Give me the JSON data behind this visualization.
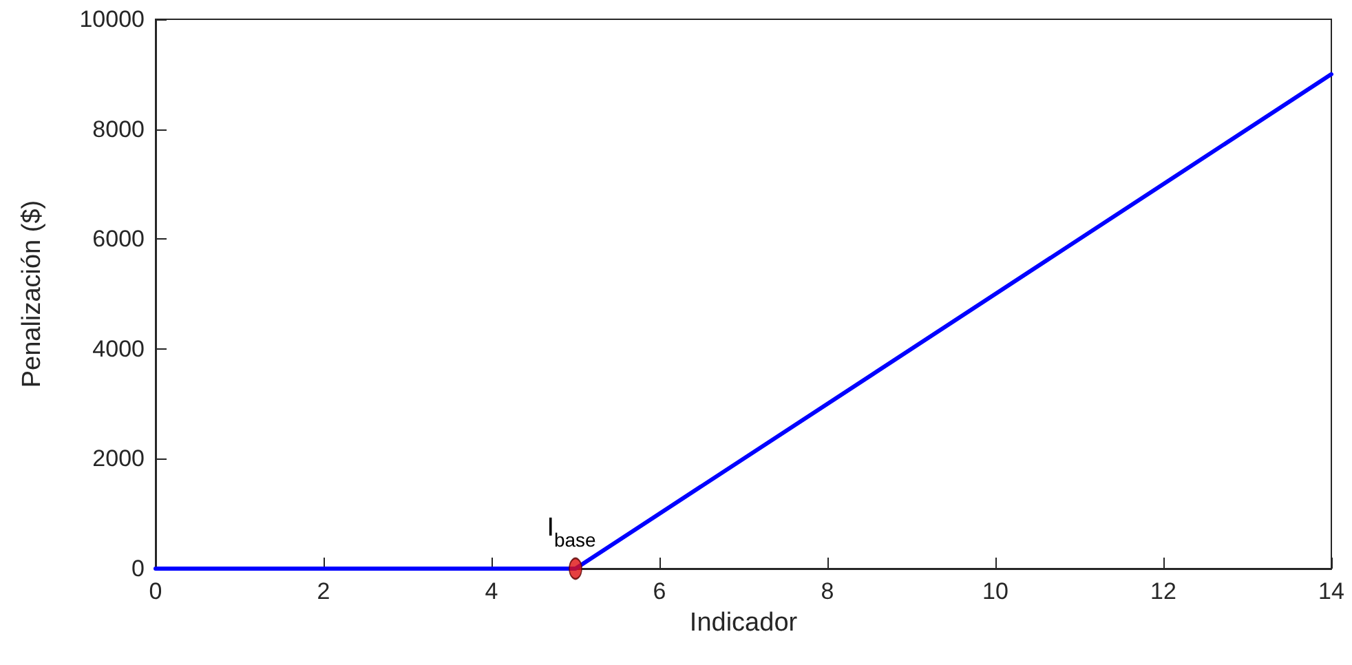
{
  "chart_data": {
    "type": "line",
    "xlabel": "Indicador",
    "ylabel": "Penalización ($)",
    "xlim": [
      0,
      14
    ],
    "xticks": [
      0,
      2,
      4,
      6,
      8,
      10,
      12,
      14
    ],
    "ylim": [
      0,
      10000
    ],
    "yticks": [
      0,
      2000,
      4000,
      6000,
      8000,
      10000
    ],
    "grid": false,
    "series": [
      {
        "x": [
          0,
          5,
          14
        ],
        "values": [
          0,
          0,
          9000
        ],
        "color": "#0000ff",
        "marker": "none",
        "line_style": "solid"
      },
      {
        "type": "scatter",
        "x": [
          5
        ],
        "values": [
          0
        ],
        "color": "#e01010",
        "marker": "circle"
      }
    ],
    "annotations": [
      {
        "text": "I$_{base}$",
        "x": 5,
        "y": 0
      }
    ]
  }
}
